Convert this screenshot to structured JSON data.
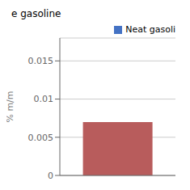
{
  "chart_data": {
    "type": "bar",
    "title": "e gasoline",
    "categories": [
      null
    ],
    "series": [
      {
        "name": "Neat gasoli",
        "color": "#4472c4",
        "values": [
          0.007
        ]
      }
    ],
    "colors": [
      "#b85c5c"
    ],
    "ylabel": "% m/m",
    "ylim": [
      0,
      0.018
    ],
    "yticks": [
      0,
      0.005,
      0.01,
      0.015
    ],
    "grid": true,
    "legend": "top-right",
    "tick_labels": "y"
  }
}
